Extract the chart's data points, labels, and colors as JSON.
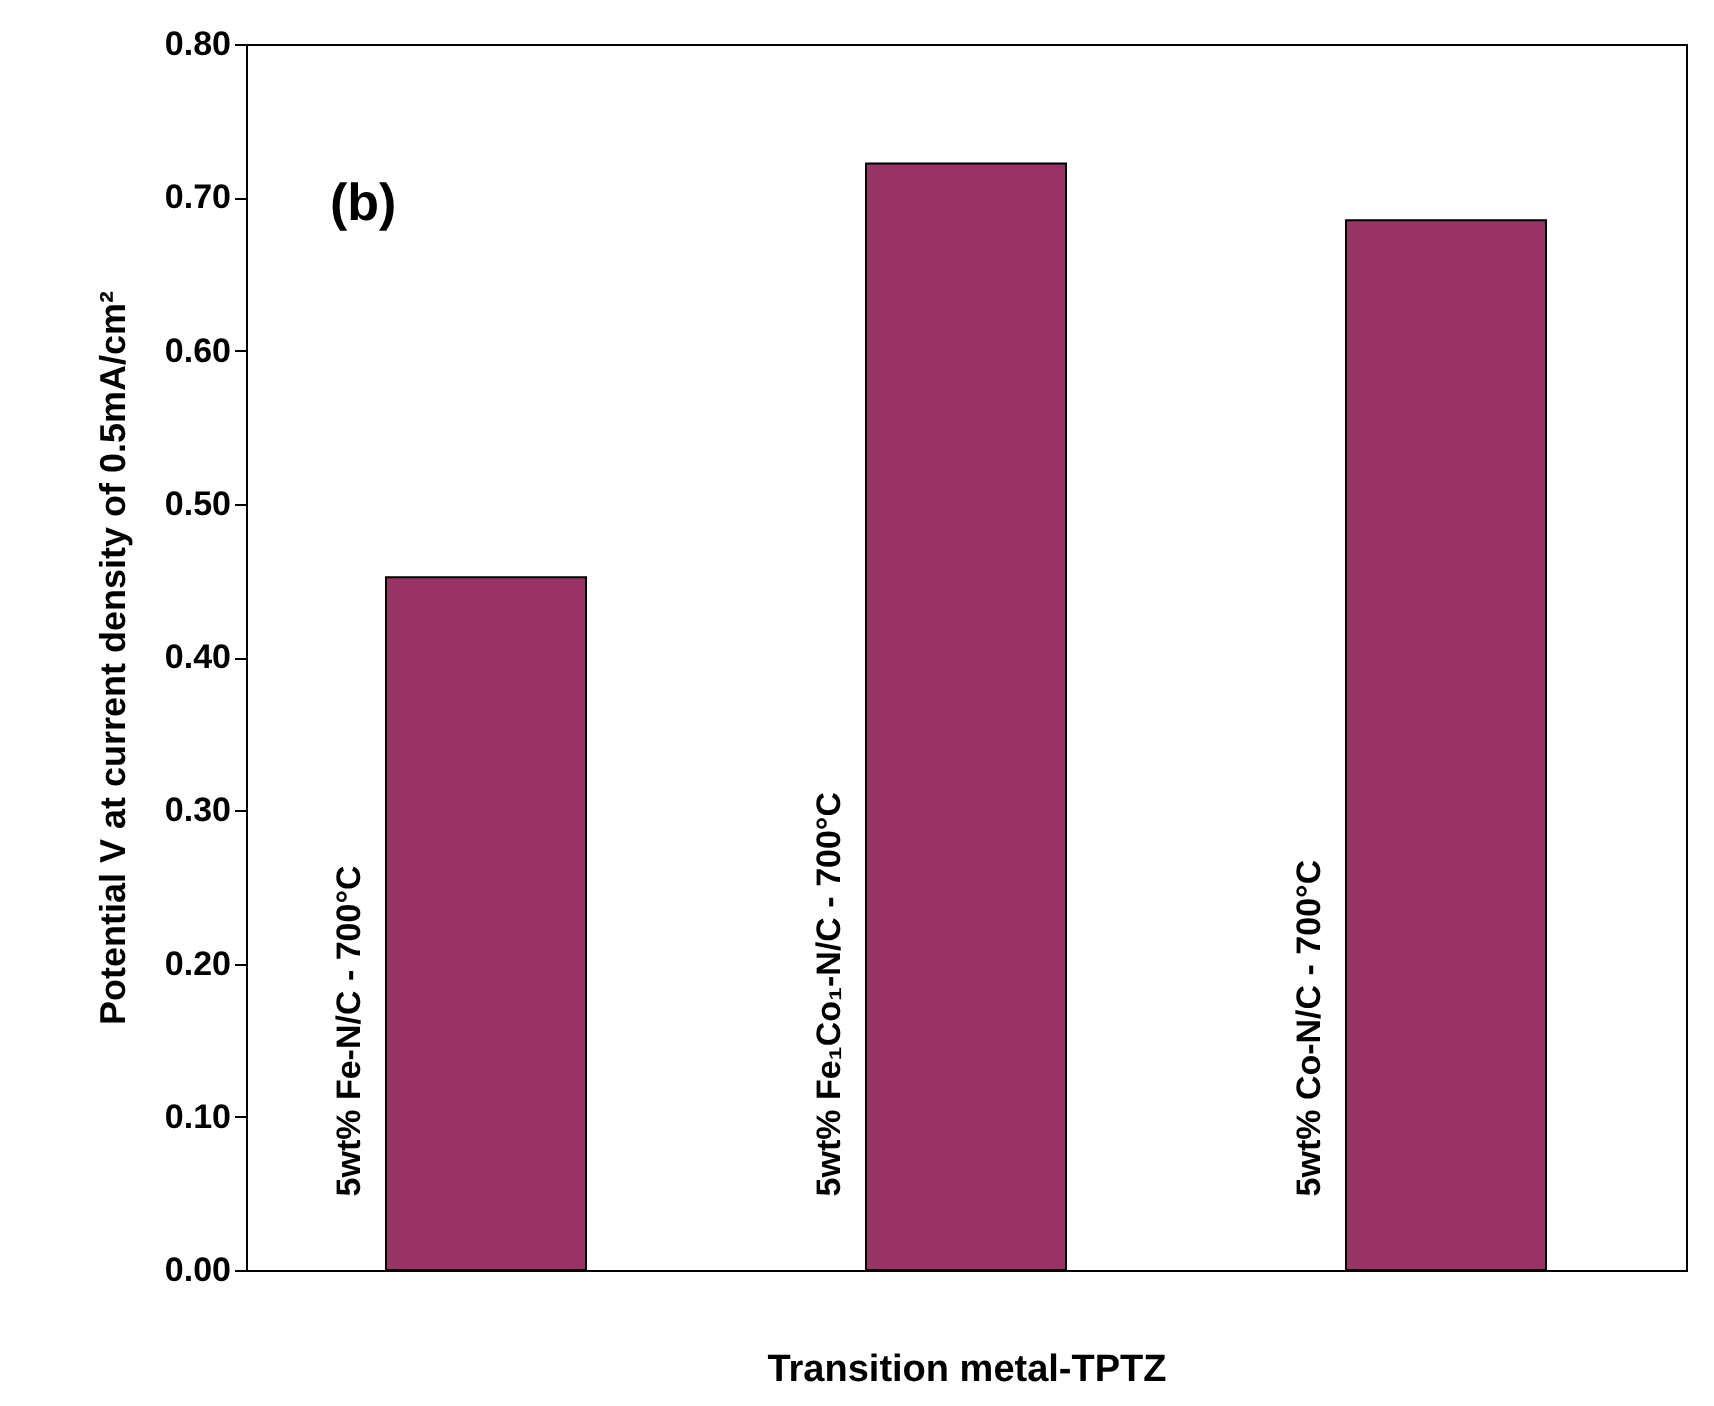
{
  "chart_data": {
    "type": "bar",
    "xlabel": "Transition metal-TPTZ",
    "ylabel": "Potential V at current density of 0.5mA/cm²",
    "categories": [
      "5wt% Fe-N/C - 700°C",
      "5wt% Fe₁Co₁-N/C - 700°C",
      "5wt% Co-N/C - 700°C"
    ],
    "values": [
      0.452,
      0.722,
      0.685
    ],
    "color": "#993366",
    "ylim": [
      0,
      0.8
    ],
    "yticks": [
      {
        "value": 0,
        "label": "0.00"
      },
      {
        "value": 0.1,
        "label": "0.10"
      },
      {
        "value": 0.2,
        "label": "0.20"
      },
      {
        "value": 0.3,
        "label": "0.30"
      },
      {
        "value": 0.4,
        "label": "0.40"
      },
      {
        "value": 0.5,
        "label": "0.50"
      },
      {
        "value": 0.6,
        "label": "0.60"
      },
      {
        "value": 0.7,
        "label": "0.70"
      },
      {
        "value": 0.8,
        "label": "0.80"
      }
    ],
    "tick_labels": "y",
    "grid": false,
    "annotations": [
      "(b)"
    ]
  }
}
